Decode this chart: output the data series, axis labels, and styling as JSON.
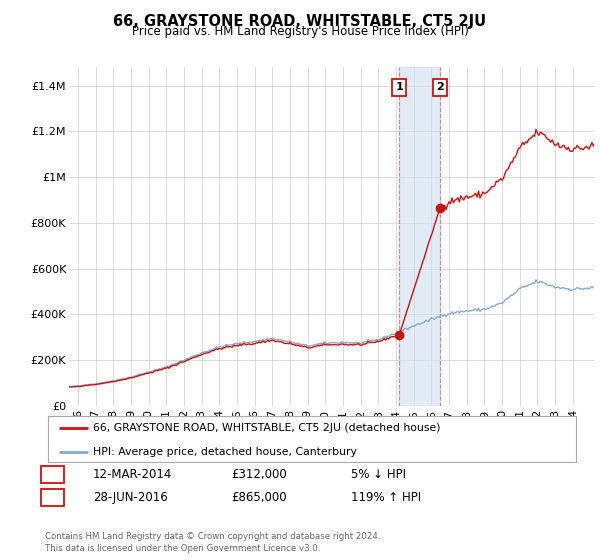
{
  "title": "66, GRAYSTONE ROAD, WHITSTABLE, CT5 2JU",
  "subtitle": "Price paid vs. HM Land Registry's House Price Index (HPI)",
  "ylabel_ticks": [
    "£0",
    "£200K",
    "£400K",
    "£600K",
    "£800K",
    "£1M",
    "£1.2M",
    "£1.4M"
  ],
  "ytick_values": [
    0,
    200000,
    400000,
    600000,
    800000,
    1000000,
    1200000,
    1400000
  ],
  "ylim": [
    0,
    1480000
  ],
  "xlim_start": 1995.5,
  "xlim_end": 2025.2,
  "xtick_years": [
    1996,
    1997,
    1998,
    1999,
    2000,
    2001,
    2002,
    2003,
    2004,
    2005,
    2006,
    2007,
    2008,
    2009,
    2010,
    2011,
    2012,
    2013,
    2014,
    2015,
    2016,
    2017,
    2018,
    2019,
    2020,
    2021,
    2022,
    2023,
    2024
  ],
  "sale1_x": 2014.19,
  "sale1_y": 312000,
  "sale2_x": 2016.49,
  "sale2_y": 865000,
  "shade_x1": 2014.19,
  "shade_x2": 2016.49,
  "line_color_property": "#cc1111",
  "line_color_hpi": "#88aacc",
  "legend_property": "66, GRAYSTONE ROAD, WHITSTABLE, CT5 2JU (detached house)",
  "legend_hpi": "HPI: Average price, detached house, Canterbury",
  "table_rows": [
    {
      "num": "1",
      "date": "12-MAR-2014",
      "price": "£312,000",
      "pct": "5% ↓ HPI"
    },
    {
      "num": "2",
      "date": "28-JUN-2016",
      "price": "£865,000",
      "pct": "119% ↑ HPI"
    }
  ],
  "footnote": "Contains HM Land Registry data © Crown copyright and database right 2024.\nThis data is licensed under the Open Government Licence v3.0.",
  "background_color": "#ffffff",
  "grid_color": "#cccccc"
}
